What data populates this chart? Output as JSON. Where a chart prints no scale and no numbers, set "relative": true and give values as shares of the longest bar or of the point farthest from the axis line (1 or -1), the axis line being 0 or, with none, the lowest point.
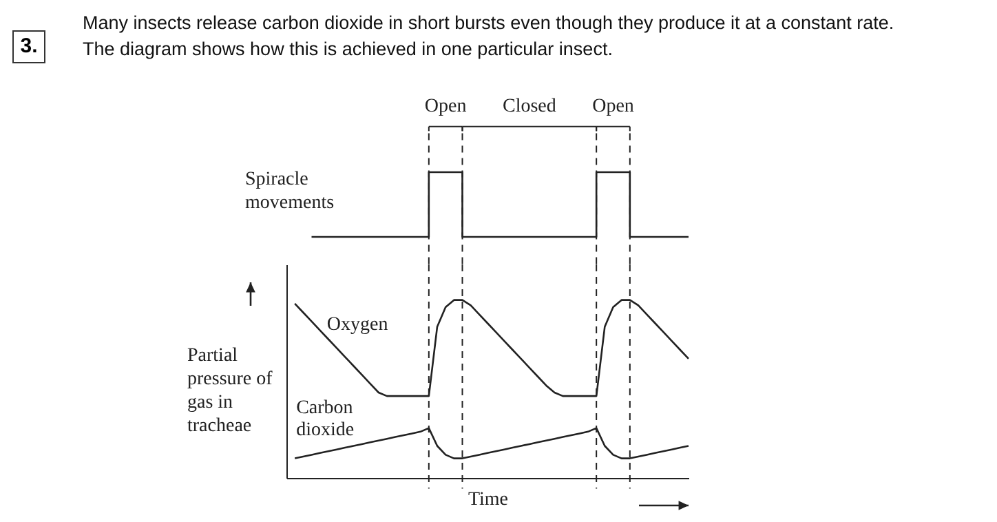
{
  "chart_data": [
    {
      "type": "step",
      "title": "Many insects release carbon dioxide in short bursts even though they produce it at a constant rate. The diagram shows how this is achieved in one particular insect.",
      "annotations": [
        "3.",
        "Open",
        "Closed",
        "Open"
      ],
      "ylabel": "Spiracle movements",
      "relative": true,
      "tick_labels": false,
      "grid": "x",
      "categories": [
        null,
        null,
        null,
        null,
        null,
        null,
        null,
        null,
        null,
        null,
        null,
        null,
        null,
        null,
        null,
        null,
        null,
        null,
        null,
        null,
        null,
        null,
        null,
        null,
        null,
        null,
        null,
        null,
        null,
        null,
        null,
        null,
        null,
        null,
        null,
        null,
        null,
        null,
        null,
        null,
        null,
        null,
        null,
        null,
        null,
        null,
        null,
        null,
        null
      ],
      "series": [
        {
          "color": "#222222",
          "values": [
            null,
            null,
            null,
            0,
            0,
            0,
            0,
            0,
            0,
            0,
            0,
            0,
            0,
            0,
            0,
            0,
            0,
            1,
            1,
            1,
            1,
            0,
            0,
            0,
            0,
            0,
            0,
            0,
            0,
            0,
            0,
            0,
            0,
            0,
            0,
            0,
            0,
            1,
            1,
            1,
            1,
            0,
            0,
            0,
            0,
            0,
            0,
            0,
            0
          ]
        }
      ]
    },
    {
      "type": "line",
      "ylabel": "Partial pressure of gas in tracheae",
      "xlabel": "Time",
      "relative": true,
      "tick_labels": false,
      "grid": "x",
      "categories": [
        null,
        null,
        null,
        null,
        null,
        null,
        null,
        null,
        null,
        null,
        null,
        null,
        null,
        null,
        null,
        null,
        null,
        null,
        null,
        null,
        null,
        null,
        null,
        null,
        null,
        null,
        null,
        null,
        null,
        null,
        null,
        null,
        null,
        null,
        null,
        null,
        null,
        null,
        null,
        null,
        null,
        null,
        null,
        null,
        null,
        null,
        null,
        null,
        null
      ],
      "series": [
        {
          "name": "Oxygen",
          "color": "#222222",
          "values": [
            null,
            0.98,
            0.93,
            0.88,
            0.83,
            0.78,
            0.73,
            0.68,
            0.63,
            0.58,
            0.53,
            0.48,
            0.46,
            0.46,
            0.46,
            0.46,
            0.46,
            0.46,
            0.85,
            0.96,
            1,
            1,
            0.97,
            0.92,
            0.87,
            0.82,
            0.77,
            0.72,
            0.67,
            0.62,
            0.57,
            0.52,
            0.48,
            0.46,
            0.46,
            0.46,
            0.46,
            0.46,
            0.85,
            0.96,
            1,
            1,
            0.97,
            0.92,
            0.87,
            0.82,
            0.77,
            0.72,
            0.67
          ]
        },
        {
          "name": "Carbon dioxide",
          "color": "#222222",
          "values": [
            null,
            0.11,
            0.12,
            0.13,
            0.14,
            0.15,
            0.16,
            0.17,
            0.18,
            0.19,
            0.2,
            0.21,
            0.22,
            0.23,
            0.24,
            0.25,
            0.26,
            0.28,
            0.18,
            0.13,
            0.11,
            0.11,
            0.12,
            0.13,
            0.14,
            0.15,
            0.16,
            0.17,
            0.18,
            0.19,
            0.2,
            0.21,
            0.22,
            0.23,
            0.24,
            0.25,
            0.26,
            0.28,
            0.18,
            0.13,
            0.11,
            0.11,
            0.12,
            0.13,
            0.14,
            0.15,
            0.16,
            0.17,
            0.18
          ]
        }
      ]
    }
  ]
}
